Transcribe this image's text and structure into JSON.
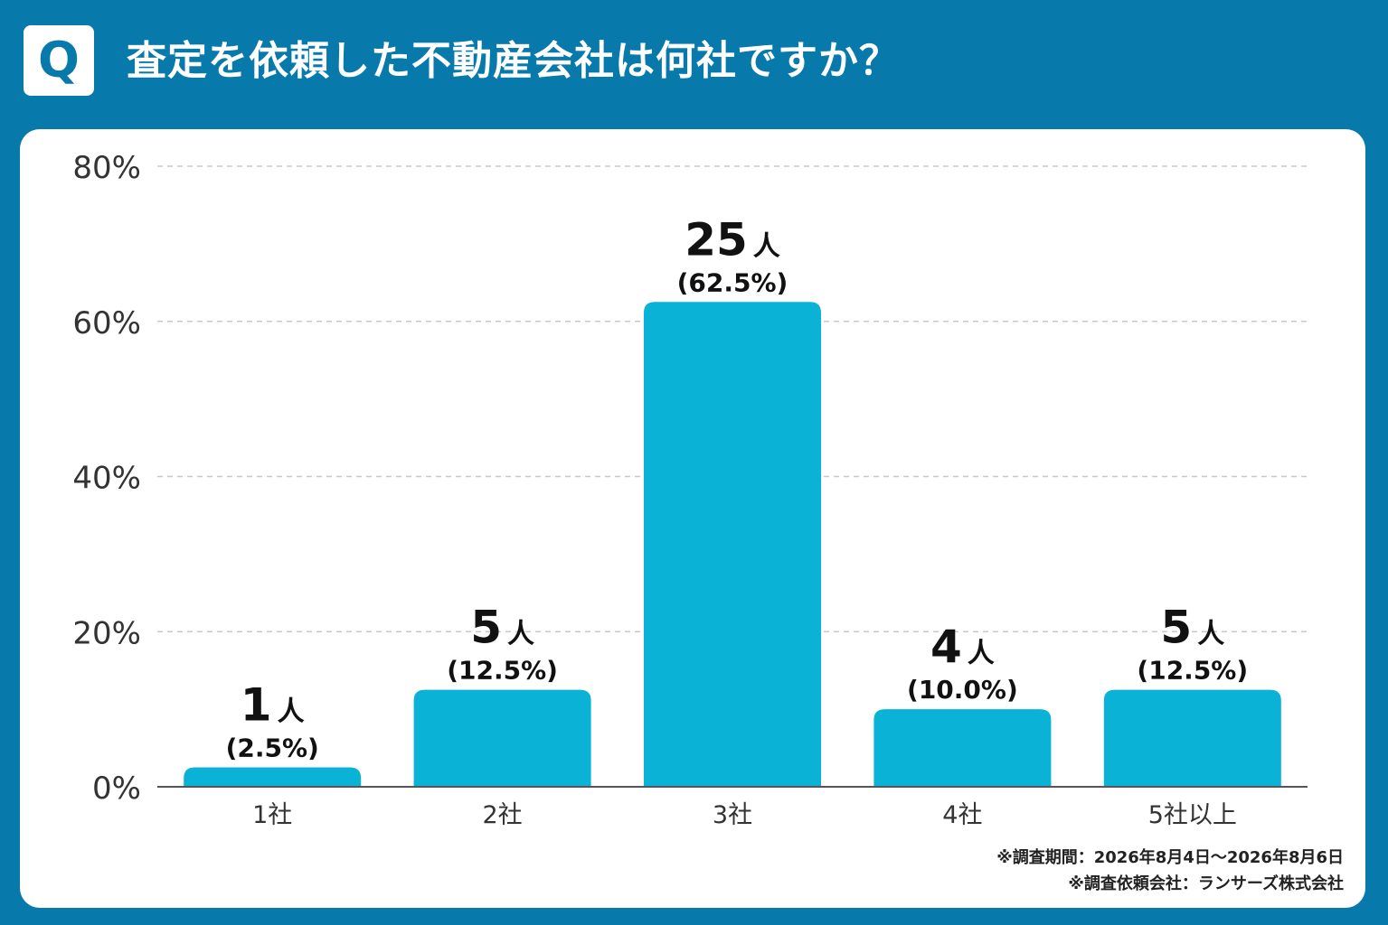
{
  "header": {
    "badge": "Q",
    "title": "査定を依頼した不動産会社は何社ですか？"
  },
  "footnotes": {
    "period": "※調査期間：2026年8月4日〜2026年8月6日",
    "company": "※調査依頼会社：ランサーズ株式会社"
  },
  "colors": {
    "background": "#0879ab",
    "bar": "#0ab3d6",
    "panel": "#ffffff"
  },
  "chart_data": {
    "type": "bar",
    "categories": [
      "1社",
      "2社",
      "3社",
      "4社",
      "5社以上"
    ],
    "values": [
      2.5,
      12.5,
      62.5,
      10.0,
      12.5
    ],
    "counts": [
      1,
      5,
      25,
      4,
      5
    ],
    "count_unit": "人",
    "value_labels": [
      "(2.5%)",
      "(12.5%)",
      "(62.5%)",
      "(10.0%)",
      "(12.5%)"
    ],
    "ylim": [
      0,
      80
    ],
    "yticks": [
      0,
      20,
      40,
      60,
      80
    ],
    "ytick_labels": [
      "0%",
      "20%",
      "40%",
      "60%",
      "80%"
    ],
    "grid": true
  }
}
